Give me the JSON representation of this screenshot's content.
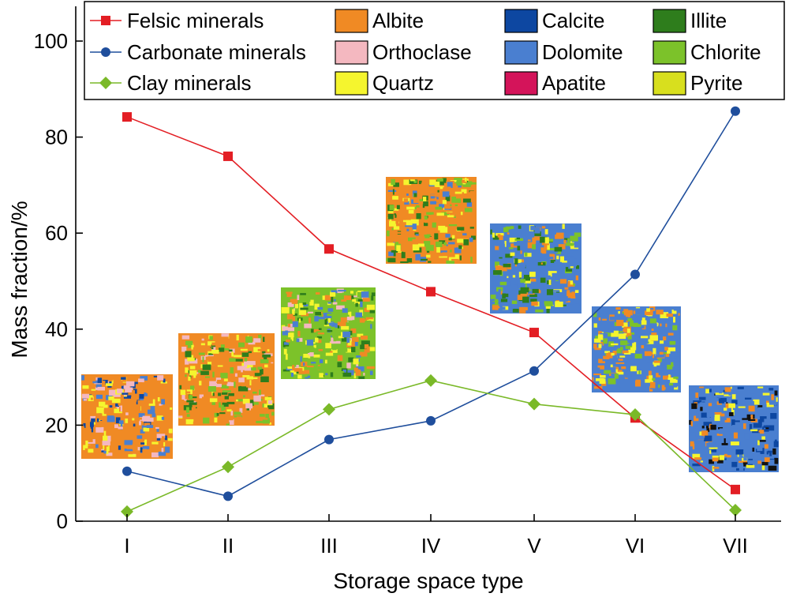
{
  "chart_data": {
    "type": "line",
    "xlabel": "Storage space type",
    "ylabel": "Mass fraction/%",
    "categories": [
      "I",
      "II",
      "III",
      "IV",
      "V",
      "VI",
      "VII"
    ],
    "yticks": [
      0,
      20,
      40,
      60,
      80,
      100
    ],
    "ylim": [
      0,
      100
    ],
    "grid": false,
    "legend_position": "top",
    "series": [
      {
        "name": "Felsic minerals",
        "color": "#e31e24",
        "marker": "square",
        "values": [
          84.2,
          76.0,
          56.7,
          47.8,
          39.3,
          21.5,
          6.6
        ]
      },
      {
        "name": "Carbonate minerals",
        "color": "#1f4e9c",
        "marker": "circle",
        "values": [
          10.4,
          5.2,
          17.0,
          20.9,
          31.3,
          51.4,
          85.4
        ]
      },
      {
        "name": "Clay minerals",
        "color": "#7ab928",
        "marker": "diamond",
        "values": [
          2.0,
          11.3,
          23.3,
          29.3,
          24.4,
          22.2,
          2.3
        ]
      }
    ],
    "mineral_legend": [
      {
        "label": "Albite",
        "color": "#f08a24"
      },
      {
        "label": "Orthoclase",
        "color": "#f4b8c0"
      },
      {
        "label": "Quartz",
        "color": "#f5f52e"
      },
      {
        "label": "Calcite",
        "color": "#0d47a1"
      },
      {
        "label": "Dolomite",
        "color": "#4a7fd0"
      },
      {
        "label": "Apatite",
        "color": "#d4145a"
      },
      {
        "label": "Illite",
        "color": "#2e7d1c"
      },
      {
        "label": "Chlorite",
        "color": "#7cc22a"
      },
      {
        "label": "Pyrite",
        "color": "#d8df1e"
      }
    ],
    "mineral_maps": [
      {
        "category": "I",
        "palette": [
          "#f08a24",
          "#f08a24",
          "#f08a24",
          "#4a7fd0",
          "#f5f52e",
          "#0d47a1",
          "#f4b8c0"
        ]
      },
      {
        "category": "II",
        "palette": [
          "#f08a24",
          "#f08a24",
          "#2e7d1c",
          "#7cc22a",
          "#f4b8c0",
          "#f5f52e"
        ]
      },
      {
        "category": "III",
        "palette": [
          "#7cc22a",
          "#f08a24",
          "#4a7fd0",
          "#2e7d1c",
          "#f4b8c0",
          "#f5f52e"
        ]
      },
      {
        "category": "IV",
        "palette": [
          "#f08a24",
          "#2e7d1c",
          "#4a7fd0",
          "#7cc22a",
          "#f5f52e",
          "#f08a24"
        ]
      },
      {
        "category": "V",
        "palette": [
          "#4a7fd0",
          "#f08a24",
          "#4a7fd0",
          "#7cc22a",
          "#f5f52e",
          "#2e7d1c"
        ]
      },
      {
        "category": "VI",
        "palette": [
          "#4a7fd0",
          "#f08a24",
          "#7cc22a",
          "#4a7fd0",
          "#f5f52e"
        ]
      },
      {
        "category": "VII",
        "palette": [
          "#4a7fd0",
          "#4a7fd0",
          "#4a7fd0",
          "#0d47a1",
          "#111111",
          "#f5f52e",
          "#f08a24"
        ]
      }
    ]
  }
}
